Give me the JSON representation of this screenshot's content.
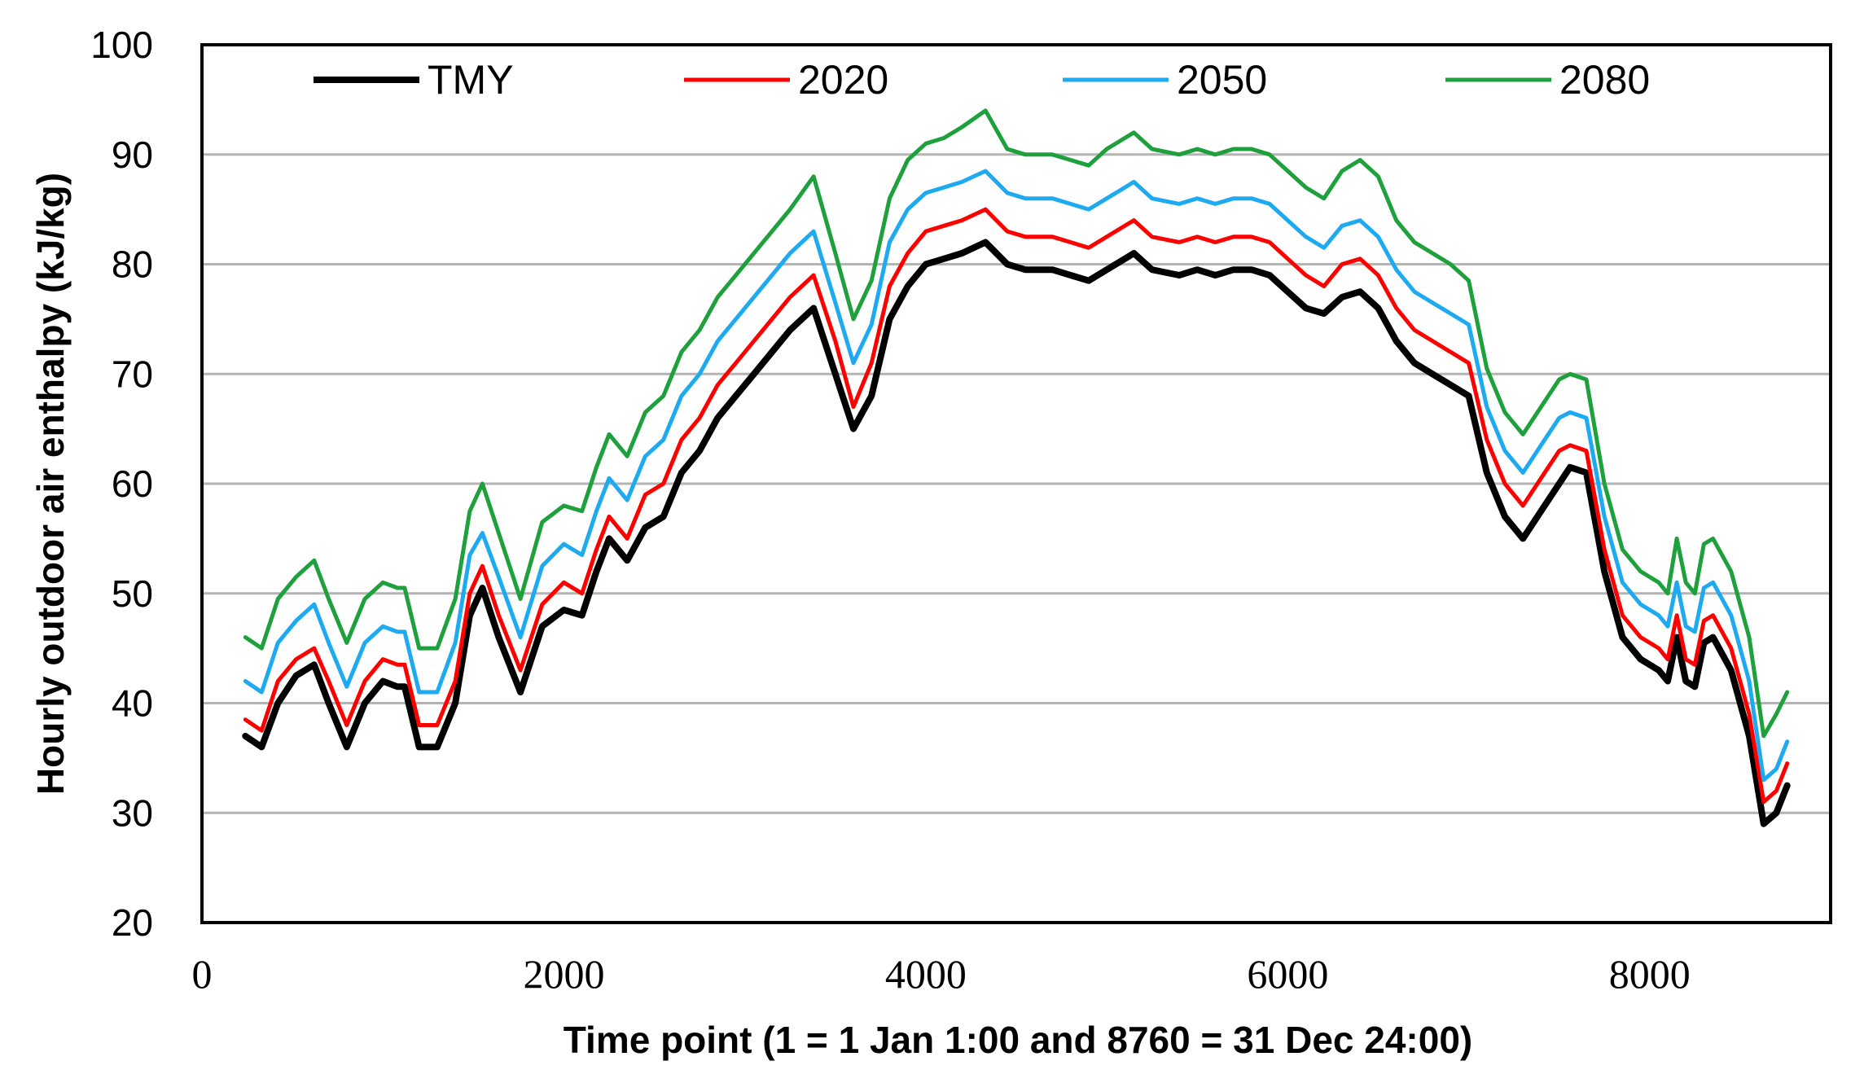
{
  "chart_data": {
    "type": "line",
    "xlabel": "Time point (1 = 1 Jan 1:00 and 8760 = 31 Dec 24:00)",
    "ylabel": "Hourly outdoor air enthalpy (kJ/kg)",
    "xlim": [
      0,
      9000
    ],
    "ylim": [
      20,
      100
    ],
    "x_ticks": [
      0,
      2000,
      4000,
      6000,
      8000
    ],
    "y_ticks": [
      20,
      30,
      40,
      50,
      60,
      70,
      80,
      90,
      100
    ],
    "grid": "horizontal",
    "legend_position": "top",
    "x": [
      240,
      330,
      420,
      520,
      620,
      700,
      800,
      900,
      1000,
      1080,
      1120,
      1200,
      1300,
      1400,
      1480,
      1550,
      1640,
      1760,
      1880,
      2000,
      2100,
      2180,
      2250,
      2350,
      2450,
      2550,
      2650,
      2750,
      2850,
      2950,
      3050,
      3150,
      3250,
      3380,
      3500,
      3600,
      3700,
      3800,
      3900,
      4000,
      4100,
      4200,
      4330,
      4450,
      4550,
      4700,
      4800,
      4900,
      5000,
      5100,
      5150,
      5250,
      5400,
      5500,
      5600,
      5700,
      5800,
      5900,
      6000,
      6100,
      6200,
      6300,
      6400,
      6500,
      6600,
      6700,
      6800,
      6900,
      7000,
      7100,
      7200,
      7300,
      7400,
      7500,
      7560,
      7650,
      7750,
      7850,
      7950,
      8050,
      8100,
      8150,
      8200,
      8250,
      8300,
      8350,
      8450,
      8550,
      8630,
      8700,
      8760
    ],
    "series": [
      {
        "name": "TMY",
        "color": "#000000",
        "values": [
          37,
          36,
          40,
          42.5,
          43.5,
          40,
          36,
          40,
          42,
          41.5,
          41.5,
          36,
          36,
          40,
          48,
          50.5,
          46,
          41,
          47,
          48.5,
          48,
          52,
          55,
          53,
          56,
          57,
          61,
          63,
          66,
          68,
          70,
          72,
          74,
          76,
          70,
          65,
          68,
          75,
          78,
          80,
          80.5,
          81,
          82,
          80,
          79.5,
          79.5,
          79,
          78.5,
          79.5,
          80.5,
          81,
          79.5,
          79,
          79.5,
          79,
          79.5,
          79.5,
          79,
          77.5,
          76,
          75.5,
          77,
          77.5,
          76,
          73,
          71,
          70,
          69,
          68,
          61,
          57,
          55,
          57.5,
          60,
          61.5,
          61,
          52,
          46,
          44,
          43,
          42,
          46,
          42,
          41.5,
          45.5,
          46,
          43,
          37,
          29,
          30,
          32.5
        ]
      },
      {
        "name": "2020",
        "color": "#ff0000",
        "values": [
          38.5,
          37.5,
          42,
          44,
          45,
          42,
          38,
          42,
          44,
          43.5,
          43.5,
          38,
          38,
          42,
          50,
          52.5,
          48,
          43,
          49,
          51,
          50,
          54,
          57,
          55,
          59,
          60,
          64,
          66,
          69,
          71,
          73,
          75,
          77,
          79,
          73,
          67,
          71,
          78,
          81,
          83,
          83.5,
          84,
          85,
          83,
          82.5,
          82.5,
          82,
          81.5,
          82.5,
          83.5,
          84,
          82.5,
          82,
          82.5,
          82,
          82.5,
          82.5,
          82,
          80.5,
          79,
          78,
          80,
          80.5,
          79,
          76,
          74,
          73,
          72,
          71,
          64,
          60,
          58,
          60.5,
          63,
          63.5,
          63,
          54,
          48,
          46,
          45,
          44,
          48,
          44,
          43.5,
          47.5,
          48,
          45,
          39,
          31,
          32,
          34.5
        ]
      },
      {
        "name": "2050",
        "color": "#1eaaf0",
        "values": [
          42,
          41,
          45.5,
          47.5,
          49,
          45.5,
          41.5,
          45.5,
          47,
          46.5,
          46.5,
          41,
          41,
          45.5,
          53.5,
          55.5,
          51.5,
          46,
          52.5,
          54.5,
          53.5,
          57.5,
          60.5,
          58.5,
          62.5,
          64,
          68,
          70,
          73,
          75,
          77,
          79,
          81,
          83,
          76.5,
          71,
          74.5,
          82,
          85,
          86.5,
          87,
          87.5,
          88.5,
          86.5,
          86,
          86,
          85.5,
          85,
          86,
          87,
          87.5,
          86,
          85.5,
          86,
          85.5,
          86,
          86,
          85.5,
          84,
          82.5,
          81.5,
          83.5,
          84,
          82.5,
          79.5,
          77.5,
          76.5,
          75.5,
          74.5,
          67,
          63,
          61,
          63.5,
          66,
          66.5,
          66,
          57,
          51,
          49,
          48,
          47,
          51,
          47,
          46.5,
          50.5,
          51,
          48,
          42,
          33,
          34,
          36.5
        ]
      },
      {
        "name": "2080",
        "color": "#1ea03c",
        "values": [
          46,
          45,
          49.5,
          51.5,
          53,
          49.5,
          45.5,
          49.5,
          51,
          50.5,
          50.5,
          45,
          45,
          49.5,
          57.5,
          60,
          55.5,
          49.5,
          56.5,
          58,
          57.5,
          61.5,
          64.5,
          62.5,
          66.5,
          68,
          72,
          74,
          77,
          79,
          81,
          83,
          85,
          88,
          81,
          75,
          78.5,
          86,
          89.5,
          91,
          91.5,
          92.5,
          94,
          90.5,
          90,
          90,
          89.5,
          89,
          90.5,
          91.5,
          92,
          90.5,
          90,
          90.5,
          90,
          90.5,
          90.5,
          90,
          88.5,
          87,
          86,
          88.5,
          89.5,
          88,
          84,
          82,
          81,
          80,
          78.5,
          70.5,
          66.5,
          64.5,
          67,
          69.5,
          70,
          69.5,
          60,
          54,
          52,
          51,
          50,
          55,
          51,
          50,
          54.5,
          55,
          52,
          46,
          37,
          39,
          41
        ]
      }
    ]
  }
}
